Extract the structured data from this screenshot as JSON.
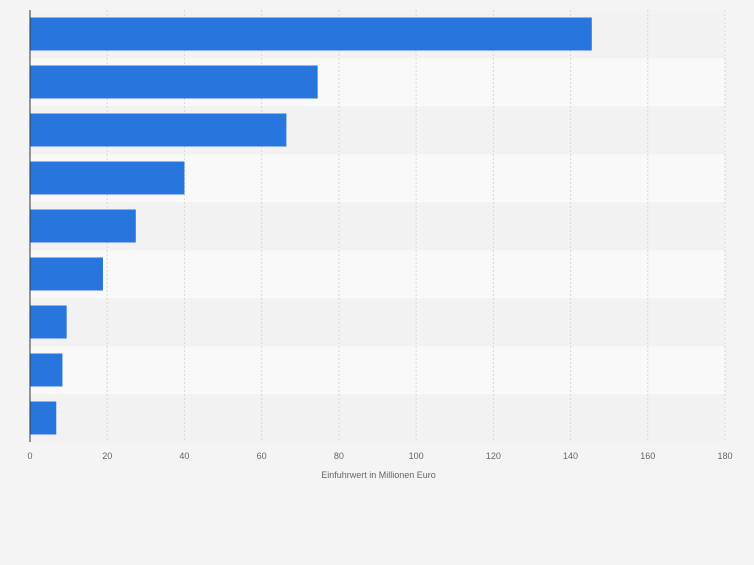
{
  "chart_data": {
    "type": "bar",
    "orientation": "horizontal",
    "categories": [
      "",
      "",
      "",
      "",
      "",
      "",
      "",
      "",
      ""
    ],
    "series": [
      {
        "values": [
          145.5,
          74.5,
          66.4,
          40.0,
          27.4,
          18.9,
          9.5,
          8.4,
          6.8
        ]
      }
    ],
    "title": "",
    "xlabel": "Einfuhrwert in Millionen Euro",
    "ylabel": "",
    "xlim": [
      0,
      180
    ],
    "xticks": [
      "0",
      "20",
      "40",
      "60",
      "80",
      "100",
      "120",
      "140",
      "160",
      "180"
    ],
    "grid": true,
    "legend": "none"
  },
  "colors": {
    "bar": "#2876dd",
    "background": "#f4f4f4",
    "band_light": "#f9f9f9",
    "band_dark": "#f2f2f2",
    "grid": "#d9d9d9",
    "axis": "#333333",
    "tick_text": "#666666"
  }
}
